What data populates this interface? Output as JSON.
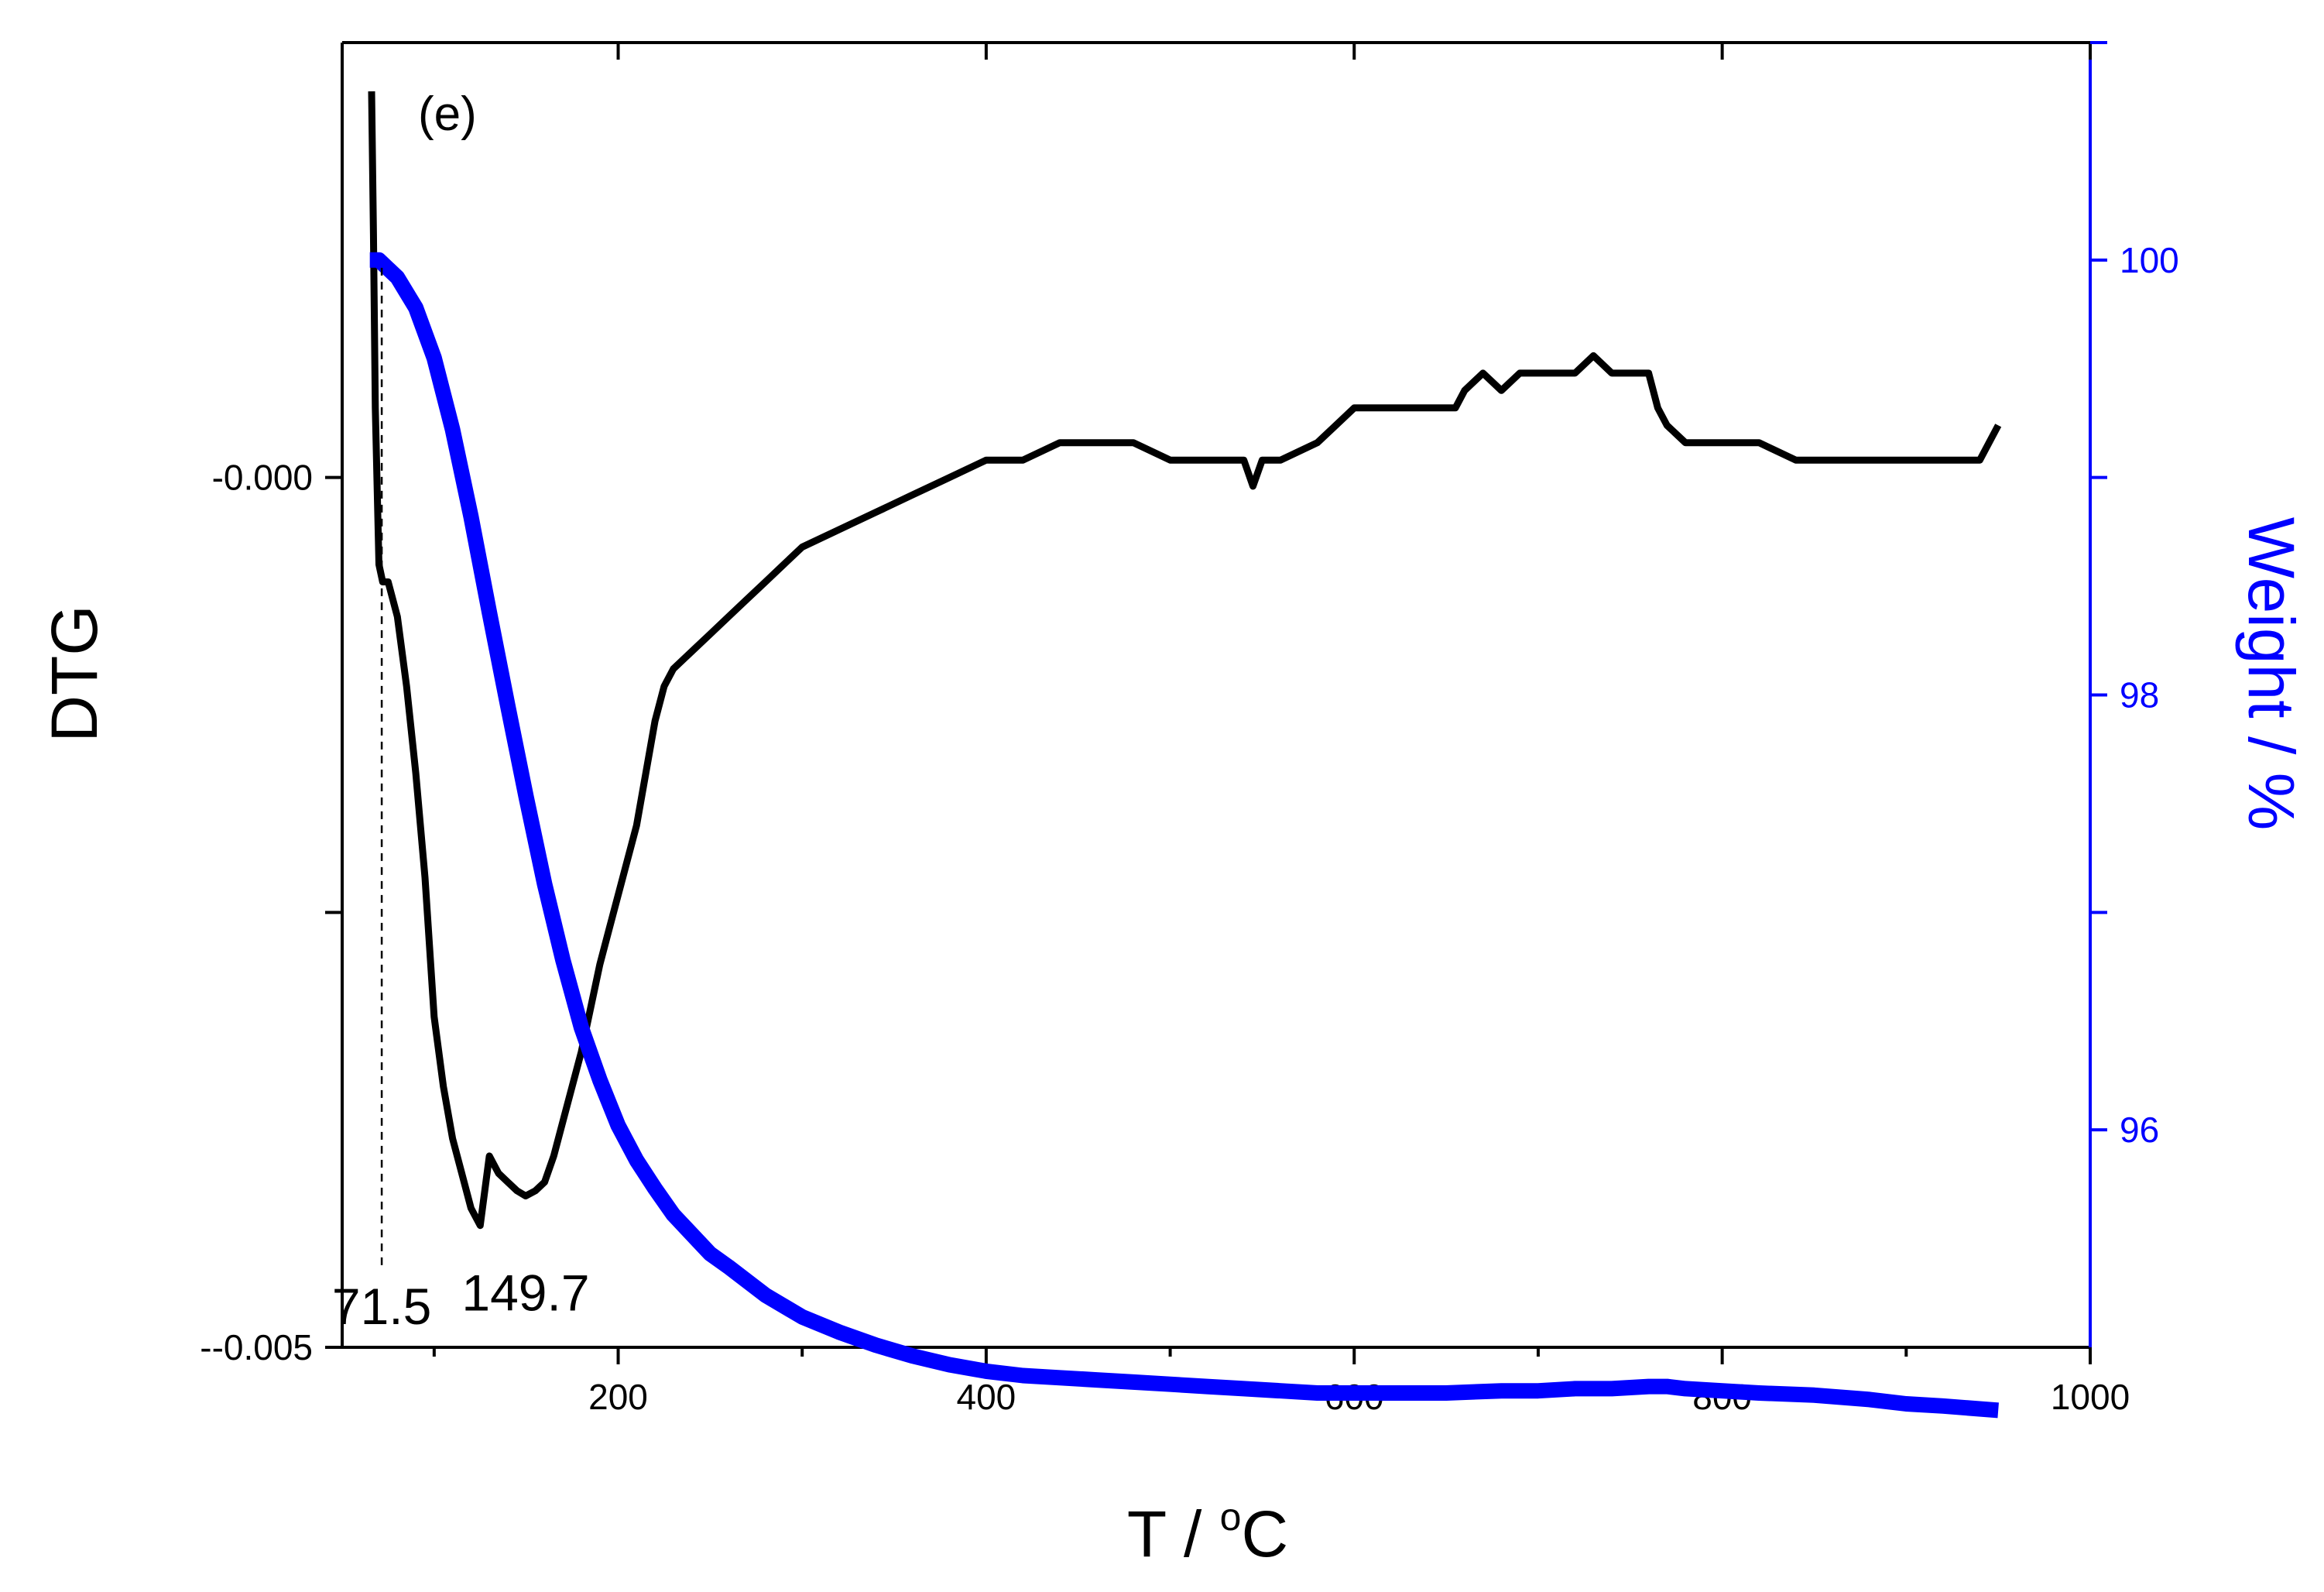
{
  "chart_data": {
    "type": "line",
    "panel_label": "(e)",
    "xlabel_main": "T / ",
    "xlabel_sup": "o",
    "xlabel_unit": "C",
    "ylabel_left": "DTG",
    "ylabel_right": "Weight / %",
    "xlim": [
      50,
      1000
    ],
    "ylim_left": [
      -0.005,
      0.0025
    ],
    "ylim_right": [
      95,
      101
    ],
    "x_ticks": [
      200,
      400,
      600,
      800,
      1000
    ],
    "x_tick_labels": [
      "200",
      "400",
      "600",
      "800",
      "1000"
    ],
    "x_minor_ticks": [
      100,
      300,
      500,
      700,
      900
    ],
    "y_left_ticks": [
      0,
      -0.0025,
      -0.005
    ],
    "y_left_tick_labels": [
      "-0.000",
      "",
      "--0.005"
    ],
    "y_right_ticks": [
      100,
      99,
      98,
      97,
      96
    ],
    "y_right_tick_labels": [
      "100",
      "",
      "98",
      "",
      "96"
    ],
    "colors": {
      "dtg": "#000000",
      "weight": "#0000ff"
    },
    "series": [
      {
        "name": "DTG",
        "axis": "left",
        "x": [
          66,
          67,
          68,
          70,
          72,
          75,
          80,
          85,
          90,
          95,
          100,
          105,
          110,
          115,
          120,
          125,
          130,
          135,
          140,
          145,
          149.7,
          155,
          160,
          165,
          170,
          175,
          180,
          185,
          190,
          195,
          200,
          205,
          210,
          215,
          220,
          225,
          230,
          240,
          250,
          260,
          270,
          280,
          290,
          300,
          320,
          340,
          360,
          380,
          400,
          420,
          440,
          460,
          480,
          500,
          520,
          540,
          545,
          550,
          560,
          580,
          590,
          600,
          610,
          620,
          640,
          655,
          660,
          670,
          680,
          690,
          700,
          710,
          720,
          730,
          740,
          750,
          760,
          765,
          770,
          780,
          790,
          800,
          820,
          840,
          860,
          880,
          900,
          920,
          940,
          950
        ],
        "values": [
          0.00222,
          0.0014,
          0.0004,
          -0.0005,
          -0.0006,
          -0.0006,
          -0.0008,
          -0.0012,
          -0.0017,
          -0.0023,
          -0.0031,
          -0.0035,
          -0.0038,
          -0.004,
          -0.0042,
          -0.0043,
          -0.0039,
          -0.004,
          -0.00405,
          -0.0041,
          -0.00413,
          -0.0041,
          -0.00405,
          -0.0039,
          -0.0037,
          -0.0035,
          -0.0033,
          -0.00305,
          -0.0028,
          -0.0026,
          -0.0024,
          -0.0022,
          -0.002,
          -0.0017,
          -0.0014,
          -0.0012,
          -0.0011,
          -0.001,
          -0.0009,
          -0.0008,
          -0.0007,
          -0.0006,
          -0.0005,
          -0.0004,
          -0.0003,
          -0.0002,
          -0.0001,
          0.0,
          0.0001,
          0.0001,
          0.0002,
          0.0002,
          0.0002,
          0.0001,
          0.0001,
          0.0001,
          -5e-05,
          0.0001,
          0.0001,
          0.0002,
          0.0003,
          0.0004,
          0.0004,
          0.0004,
          0.0004,
          0.0004,
          0.0005,
          0.0006,
          0.0005,
          0.0006,
          0.0006,
          0.0006,
          0.0006,
          0.0007,
          0.0006,
          0.0006,
          0.0006,
          0.0004,
          0.0003,
          0.0002,
          0.0002,
          0.0002,
          0.0002,
          0.0001,
          0.0001,
          0.0001,
          0.0001,
          0.0001,
          0.0001,
          0.0003
        ]
      },
      {
        "name": "Weight",
        "axis": "right",
        "x": [
          65,
          70,
          80,
          90,
          100,
          110,
          120,
          130,
          140,
          150,
          160,
          170,
          180,
          190,
          200,
          210,
          220,
          230,
          240,
          250,
          260,
          280,
          300,
          320,
          340,
          360,
          380,
          400,
          420,
          440,
          460,
          480,
          500,
          520,
          540,
          560,
          580,
          600,
          620,
          650,
          680,
          700,
          720,
          740,
          760,
          770,
          780,
          800,
          820,
          850,
          880,
          900,
          920,
          950
        ],
        "values": [
          100.0,
          100.0,
          99.92,
          99.78,
          99.55,
          99.22,
          98.82,
          98.38,
          97.95,
          97.53,
          97.13,
          96.78,
          96.47,
          96.23,
          96.02,
          95.86,
          95.73,
          95.61,
          95.52,
          95.43,
          95.37,
          95.24,
          95.14,
          95.07,
          95.01,
          94.96,
          94.92,
          94.89,
          94.87,
          94.86,
          94.85,
          94.84,
          94.83,
          94.82,
          94.81,
          94.8,
          94.79,
          94.79,
          94.79,
          94.79,
          94.8,
          94.8,
          94.81,
          94.81,
          94.82,
          94.82,
          94.81,
          94.8,
          94.79,
          94.78,
          94.76,
          94.74,
          94.73,
          94.71
        ]
      }
    ],
    "annotations": [
      {
        "text": "149.7",
        "x": 149.7
      },
      {
        "text": "71.5",
        "x": 71.5
      }
    ]
  }
}
